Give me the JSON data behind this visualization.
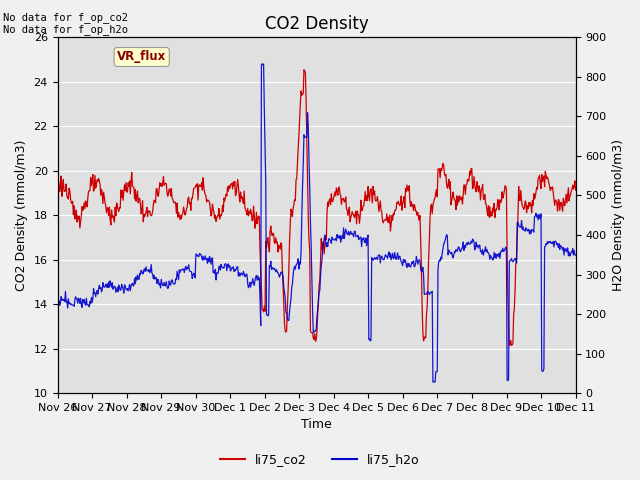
{
  "title": "CO2 Density",
  "xlabel": "Time",
  "ylabel_left": "CO2 Density (mmol/m3)",
  "ylabel_right": "H2O Density (mmol/m3)",
  "no_data_text": "No data for f_op_co2\nNo data for f_op_h2o",
  "vr_flux_label": "VR_flux",
  "legend_entries": [
    "li75_co2",
    "li75_h2o"
  ],
  "legend_colors": [
    "#cc0000",
    "#0000cc"
  ],
  "ylim_left": [
    10,
    26
  ],
  "ylim_right": [
    0,
    900
  ],
  "left_yticks": [
    10,
    12,
    14,
    16,
    18,
    20,
    22,
    24,
    26
  ],
  "right_yticks": [
    0,
    100,
    200,
    300,
    400,
    500,
    600,
    700,
    800,
    900
  ],
  "tick_positions": [
    0,
    1,
    2,
    3,
    4,
    5,
    6,
    7,
    8,
    9,
    10,
    11,
    12,
    13,
    14,
    15
  ],
  "tick_labels": [
    "Nov 26",
    "Nov 27",
    "Nov 28",
    "Nov 29",
    "Nov 30",
    "Dec 1",
    "Dec 2",
    "Dec 3",
    "Dec 4",
    "Dec 5",
    "Dec 6",
    "Dec 7",
    "Dec 8",
    "Dec 9",
    "Dec 10",
    "Dec 11"
  ],
  "background_color": "#e0e0e0",
  "fig_background": "#f0f0f0",
  "title_fontsize": 12,
  "axis_fontsize": 9,
  "tick_fontsize": 8,
  "co2_color": "#cc0000",
  "h2o_color": "#0000cc",
  "linewidth": 0.9
}
